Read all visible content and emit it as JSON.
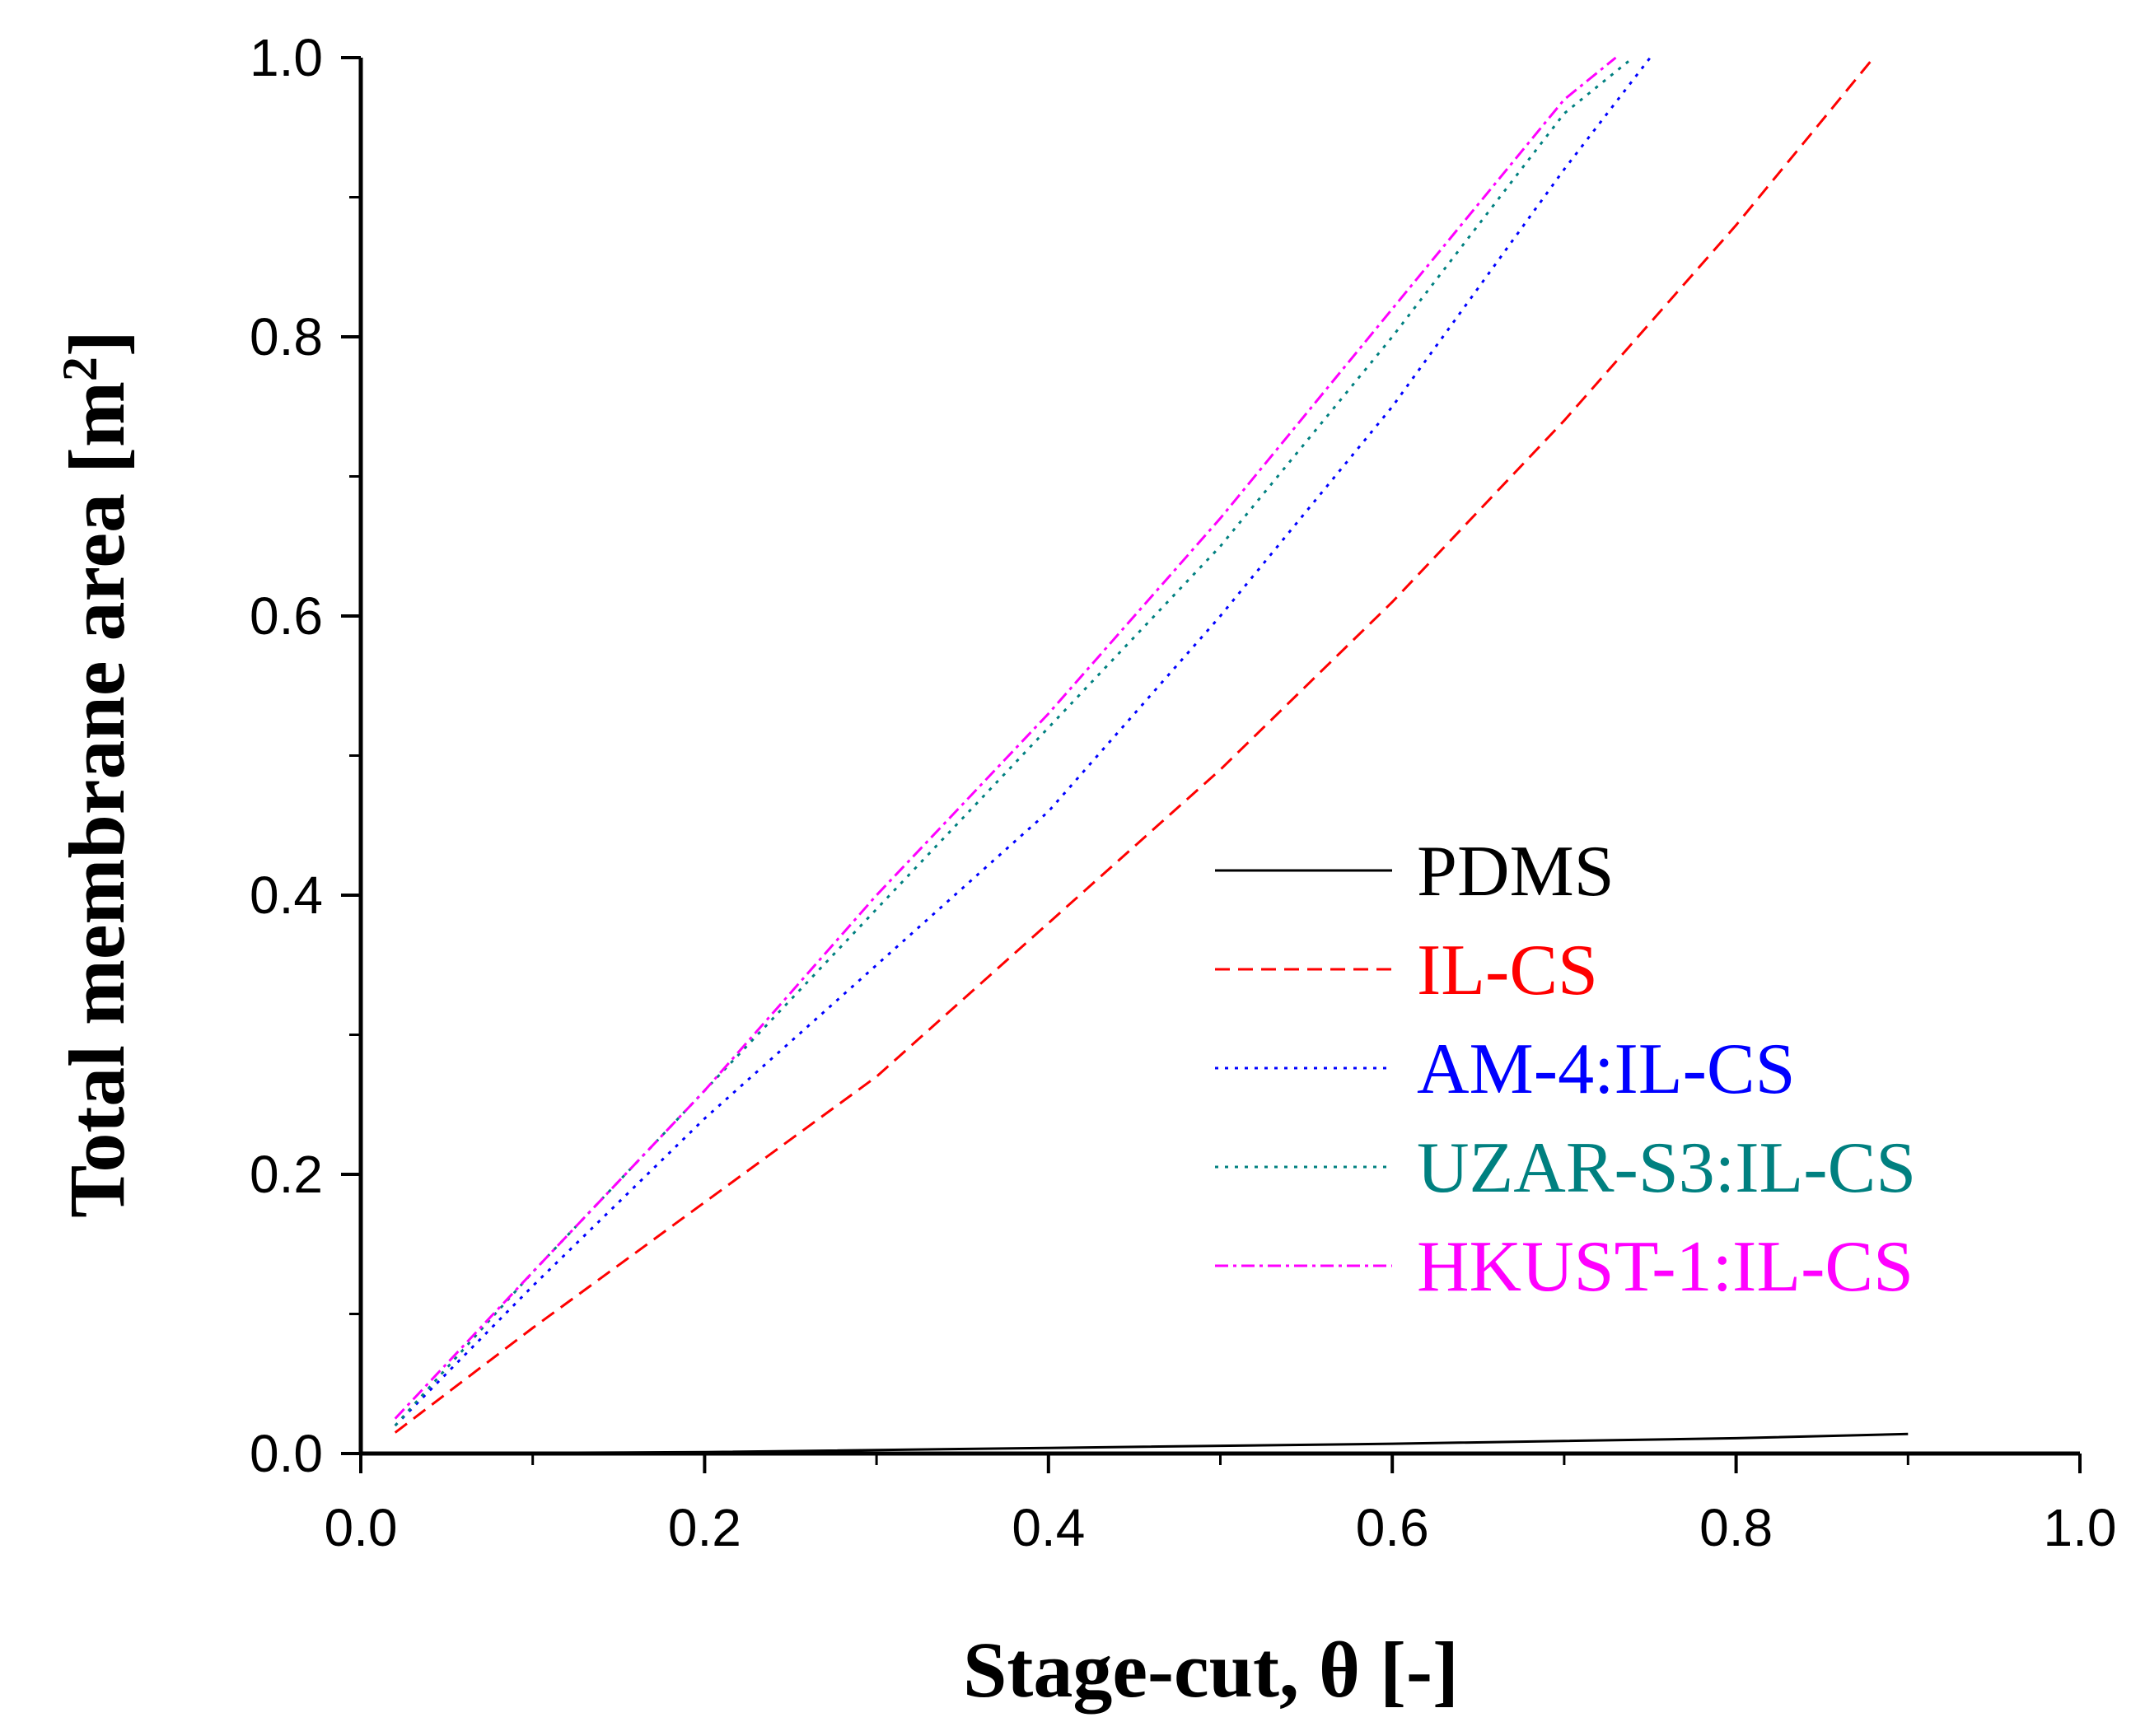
{
  "chart_data": {
    "type": "line",
    "title": "",
    "xlabel": "Stage-cut, θ [-]",
    "ylabel_main": "Total membrane area [m",
    "ylabel_sup": "2",
    "ylabel_close": "]",
    "xlim": [
      0.0,
      1.0
    ],
    "ylim": [
      0.0,
      1.0
    ],
    "xticks": [
      0.0,
      0.2,
      0.4,
      0.6,
      0.8,
      1.0
    ],
    "xtick_labels": [
      "0.0",
      "0.2",
      "0.4",
      "0.6",
      "0.8",
      "1.0"
    ],
    "yticks": [
      0.0,
      0.2,
      0.4,
      0.6,
      0.8,
      1.0
    ],
    "ytick_labels": [
      "0.0",
      "0.2",
      "0.4",
      "0.6",
      "0.8",
      "1.0"
    ],
    "minor_step": 0.1,
    "grid": false,
    "legend_position": "center-right",
    "series": [
      {
        "name": "PDMS",
        "color": "#000000",
        "dash": "solid",
        "x": [
          0.02,
          0.2,
          0.4,
          0.6,
          0.8,
          0.9
        ],
        "y": [
          0.0,
          0.001,
          0.004,
          0.007,
          0.011,
          0.014
        ]
      },
      {
        "name": "IL-CS",
        "color": "#ff0000",
        "dash": "dashed",
        "x": [
          0.02,
          0.1,
          0.2,
          0.3,
          0.4,
          0.5,
          0.6,
          0.7,
          0.8,
          0.88
        ],
        "y": [
          0.015,
          0.09,
          0.18,
          0.27,
          0.38,
          0.49,
          0.61,
          0.74,
          0.88,
          1.0
        ]
      },
      {
        "name": "AM-4:IL-CS",
        "color": "#0000ff",
        "dash": "dotted",
        "x": [
          0.02,
          0.1,
          0.2,
          0.3,
          0.4,
          0.5,
          0.6,
          0.7,
          0.75
        ],
        "y": [
          0.02,
          0.12,
          0.24,
          0.35,
          0.46,
          0.6,
          0.75,
          0.92,
          1.0
        ]
      },
      {
        "name": "UZAR-S3:IL-CS",
        "color": "#008080",
        "dash": "dotted",
        "x": [
          0.02,
          0.1,
          0.2,
          0.3,
          0.4,
          0.5,
          0.6,
          0.7,
          0.74
        ],
        "y": [
          0.02,
          0.13,
          0.26,
          0.39,
          0.52,
          0.65,
          0.8,
          0.96,
          1.0
        ]
      },
      {
        "name": "HKUST-1:IL-CS",
        "color": "#ff00ff",
        "dash": "dashdot",
        "x": [
          0.02,
          0.1,
          0.2,
          0.3,
          0.4,
          0.5,
          0.6,
          0.7,
          0.73
        ],
        "y": [
          0.025,
          0.13,
          0.26,
          0.4,
          0.53,
          0.67,
          0.82,
          0.97,
          1.0
        ]
      }
    ]
  }
}
